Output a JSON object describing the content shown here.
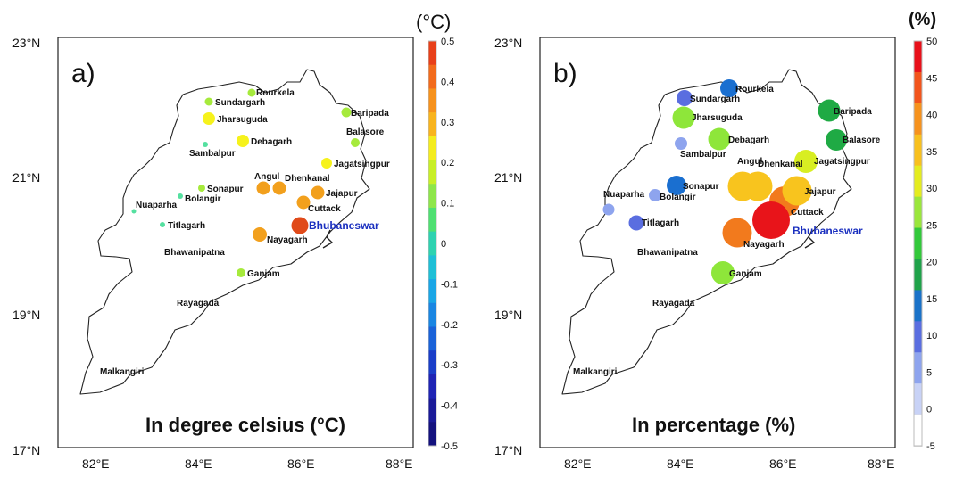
{
  "figure": {
    "panels": [
      {
        "id": "a",
        "label": "a)",
        "caption": "In degree celsius (°C)",
        "colorbar": {
          "title": "(°C)",
          "ticks": [
            "0.5",
            "0.4",
            "0.3",
            "0.2",
            "0.1",
            "0",
            "-0.1",
            "-0.2",
            "-0.3",
            "-0.4",
            "-0.5"
          ],
          "colors": [
            "#e8401a",
            "#f26b1c",
            "#f6921d",
            "#f8b41e",
            "#f4ec1f",
            "#c8ef28",
            "#8ee64a",
            "#4fe072",
            "#2ed2b0",
            "#1fbfd6",
            "#1aa6e6",
            "#1a86e2",
            "#1a62d8",
            "#1a3ec8",
            "#1f24b4",
            "#1a1a98",
            "#14127e"
          ],
          "labels_left": [
            "23°N",
            "21°N",
            "19°N",
            "17°N"
          ],
          "labels_bottom": [
            "82°E",
            "84°E",
            "86°E",
            "88°E"
          ]
        },
        "cities": [
          {
            "name": "Rourkela",
            "value": 0.1,
            "color": "#a6ea3c"
          },
          {
            "name": "Sundargarh",
            "value": 0.1,
            "color": "#a6ea3c"
          },
          {
            "name": "Jharsuguda",
            "value": 0.25,
            "color": "#f6f21c"
          },
          {
            "name": "Debagarh",
            "value": 0.25,
            "color": "#f6f21c"
          },
          {
            "name": "Sambalpur",
            "value": 0.05,
            "color": "#55e0a0"
          },
          {
            "name": "Baripada",
            "value": 0.1,
            "color": "#a6ea3c"
          },
          {
            "name": "Balasore",
            "value": 0.1,
            "color": "#a6ea3c"
          },
          {
            "name": "Jagatsingpur",
            "value": 0.25,
            "color": "#f6f21c"
          },
          {
            "name": "Angul",
            "value": 0.35,
            "color": "#f2a01d"
          },
          {
            "name": "Dhenkanal",
            "value": 0.35,
            "color": "#f2a01d"
          },
          {
            "name": "Jajapur",
            "value": 0.35,
            "color": "#f2a01d"
          },
          {
            "name": "Cuttack",
            "value": 0.35,
            "color": "#f2a01d"
          },
          {
            "name": "Sonapur",
            "value": 0.1,
            "color": "#a6ea3c"
          },
          {
            "name": "Bolangir",
            "value": 0.05,
            "color": "#55e0a0"
          },
          {
            "name": "Nuaparha",
            "value": 0.05,
            "color": "#55e0a0"
          },
          {
            "name": "Titlagarh",
            "value": 0.05,
            "color": "#55e0a0"
          },
          {
            "name": "Bhubaneswar",
            "value": 0.45,
            "color": "#e04a1a"
          },
          {
            "name": "Nayagarh",
            "value": 0.35,
            "color": "#f2a01d"
          },
          {
            "name": "Bhawanipatna",
            "value": null,
            "color": ""
          },
          {
            "name": "Ganjam",
            "value": 0.15,
            "color": "#a6ea3c"
          },
          {
            "name": "Rayagada",
            "value": null,
            "color": ""
          },
          {
            "name": "Malkangiri",
            "value": null,
            "color": ""
          }
        ]
      },
      {
        "id": "b",
        "label": "b)",
        "caption": "In percentage (%)",
        "colorbar": {
          "title": "(%)",
          "ticks": [
            "50",
            "45",
            "40",
            "35",
            "30",
            "25",
            "20",
            "15",
            "10",
            "5",
            "0",
            "-5"
          ],
          "colors": [
            "#e8101a",
            "#f2541c",
            "#f6921d",
            "#f8c01e",
            "#e4ec1f",
            "#9ae63c",
            "#32c83a",
            "#1fa24a",
            "#1a72c8",
            "#5a6ee0",
            "#8ea4ee",
            "#c8d2f6",
            "#ffffff"
          ],
          "labels_left": [
            "23°N",
            "21°N",
            "19°N",
            "17°N"
          ],
          "labels_bottom": [
            "82°E",
            "84°E",
            "86°E",
            "88°E"
          ]
        },
        "cities": [
          {
            "name": "Rourkela",
            "value": 18,
            "color": "#1a6fd0"
          },
          {
            "name": "Sundargarh",
            "value": 12,
            "color": "#5a6ee0"
          },
          {
            "name": "Jharsuguda",
            "value": 30,
            "color": "#8ee63a"
          },
          {
            "name": "Debagarh",
            "value": 30,
            "color": "#8ee63a"
          },
          {
            "name": "Sambalpur",
            "value": 7,
            "color": "#8ea4ee"
          },
          {
            "name": "Baripada",
            "value": 22,
            "color": "#1faa44"
          },
          {
            "name": "Balasore",
            "value": 22,
            "color": "#1faa44"
          },
          {
            "name": "Jagatsingpur",
            "value": 32,
            "color": "#d8ee22"
          },
          {
            "name": "Angul",
            "value": 37,
            "color": "#f8c41e"
          },
          {
            "name": "Dhenkanal",
            "value": 37,
            "color": "#f8c41e"
          },
          {
            "name": "Jajapur",
            "value": 37,
            "color": "#f8c41e"
          },
          {
            "name": "Cuttack",
            "value": 42,
            "color": "#f27a1d"
          },
          {
            "name": "Sonapur",
            "value": 17,
            "color": "#1a6fd0"
          },
          {
            "name": "Bolangir",
            "value": 7,
            "color": "#8ea4ee"
          },
          {
            "name": "Nuaparha",
            "value": 7,
            "color": "#8ea4ee"
          },
          {
            "name": "Titlagarh",
            "value": 12,
            "color": "#5a6ee0"
          },
          {
            "name": "Bhubaneswar",
            "value": 50,
            "color": "#e8141a"
          },
          {
            "name": "Nayagarh",
            "value": 42,
            "color": "#f27a1d"
          },
          {
            "name": "Bhawanipatna",
            "value": null,
            "color": ""
          },
          {
            "name": "Ganjam",
            "value": 30,
            "color": "#8ee63a"
          },
          {
            "name": "Rayagada",
            "value": null,
            "color": ""
          },
          {
            "name": "Malkangiri",
            "value": null,
            "color": ""
          }
        ]
      }
    ]
  }
}
